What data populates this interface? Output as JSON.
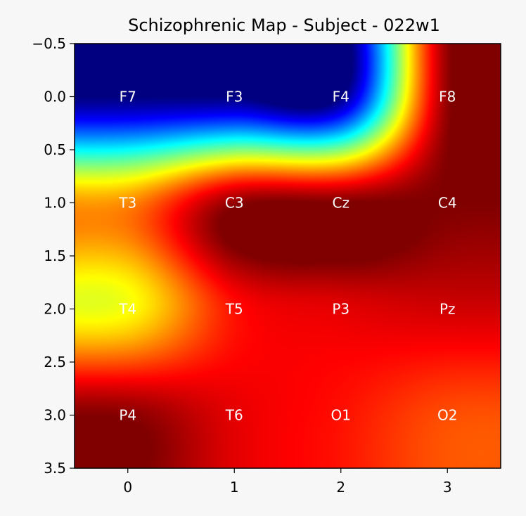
{
  "chart_data": {
    "type": "heatmap",
    "title": "Schizophrenic Map - Subject -  022w1",
    "xlabel": "",
    "ylabel": "",
    "xlim": [
      -0.5,
      3.5
    ],
    "ylim": [
      3.5,
      -0.5
    ],
    "x_ticks": [
      {
        "value": 0,
        "label": "0"
      },
      {
        "value": 1,
        "label": "1"
      },
      {
        "value": 2,
        "label": "2"
      },
      {
        "value": 3,
        "label": "3"
      }
    ],
    "y_ticks": [
      {
        "value": -0.5,
        "label": "−0.5"
      },
      {
        "value": 0.0,
        "label": "0.0"
      },
      {
        "value": 0.5,
        "label": "0.5"
      },
      {
        "value": 1.0,
        "label": "1.0"
      },
      {
        "value": 1.5,
        "label": "1.5"
      },
      {
        "value": 2.0,
        "label": "2.0"
      },
      {
        "value": 2.5,
        "label": "2.5"
      },
      {
        "value": 3.0,
        "label": "3.0"
      },
      {
        "value": 3.5,
        "label": "3.5"
      }
    ],
    "colormap": "jet",
    "interpolation": "bicubic",
    "grid": false,
    "values": [
      [
        0.0,
        0.0,
        0.0,
        0.98
      ],
      [
        0.74,
        0.98,
        1.0,
        1.0
      ],
      [
        0.62,
        0.86,
        0.9,
        0.92
      ],
      [
        0.99,
        0.9,
        0.86,
        0.8
      ]
    ],
    "electrodes": [
      {
        "label": "F7",
        "x": 0,
        "y": 0
      },
      {
        "label": "F3",
        "x": 1,
        "y": 0
      },
      {
        "label": "F4",
        "x": 2,
        "y": 0
      },
      {
        "label": "F8",
        "x": 3,
        "y": 0
      },
      {
        "label": "T3",
        "x": 0,
        "y": 1
      },
      {
        "label": "C3",
        "x": 1,
        "y": 1
      },
      {
        "label": "Cz",
        "x": 2,
        "y": 1
      },
      {
        "label": "C4",
        "x": 3,
        "y": 1
      },
      {
        "label": "T4",
        "x": 0,
        "y": 2
      },
      {
        "label": "T5",
        "x": 1,
        "y": 2
      },
      {
        "label": "P3",
        "x": 2,
        "y": 2
      },
      {
        "label": "Pz",
        "x": 3,
        "y": 2
      },
      {
        "label": "P4",
        "x": 0,
        "y": 3
      },
      {
        "label": "T6",
        "x": 1,
        "y": 3
      },
      {
        "label": "O1",
        "x": 2,
        "y": 3
      },
      {
        "label": "O2",
        "x": 3,
        "y": 3
      }
    ]
  }
}
